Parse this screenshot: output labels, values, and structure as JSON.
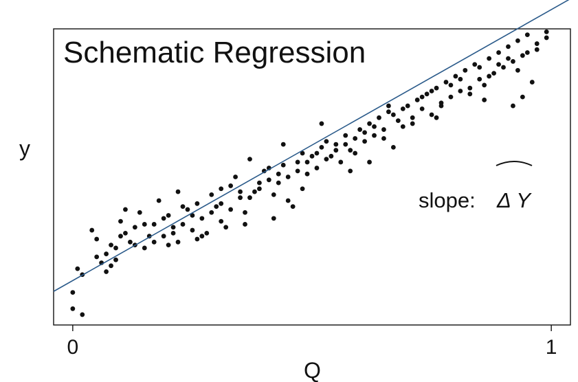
{
  "chart_data": {
    "type": "scatter",
    "title": "Schematic Regression",
    "xlabel": "Q",
    "ylabel": "y",
    "xlim": [
      -0.04,
      1.04
    ],
    "ylim": [
      0,
      1
    ],
    "x_ticks": [
      0,
      1
    ],
    "x_tick_labels": [
      "0",
      "1"
    ],
    "y_ticks": [],
    "grid": false,
    "annotation": "slope:",
    "annotation_symbol": "Δ Y",
    "regression_line": {
      "intercept": 0.15,
      "slope": 0.915
    },
    "colors": {
      "points": "#111111",
      "line": "#2a5a8a",
      "frame": "#111111"
    },
    "points": [
      [
        0.0,
        0.11
      ],
      [
        0.0,
        0.055
      ],
      [
        0.02,
        0.035
      ],
      [
        0.01,
        0.19
      ],
      [
        0.04,
        0.32
      ],
      [
        0.05,
        0.23
      ],
      [
        0.06,
        0.21
      ],
      [
        0.07,
        0.18
      ],
      [
        0.07,
        0.24
      ],
      [
        0.08,
        0.27
      ],
      [
        0.09,
        0.22
      ],
      [
        0.09,
        0.26
      ],
      [
        0.1,
        0.3
      ],
      [
        0.1,
        0.35
      ],
      [
        0.11,
        0.39
      ],
      [
        0.12,
        0.28
      ],
      [
        0.13,
        0.33
      ],
      [
        0.14,
        0.38
      ],
      [
        0.15,
        0.26
      ],
      [
        0.16,
        0.3
      ],
      [
        0.17,
        0.34
      ],
      [
        0.18,
        0.42
      ],
      [
        0.19,
        0.3
      ],
      [
        0.2,
        0.27
      ],
      [
        0.2,
        0.37
      ],
      [
        0.21,
        0.33
      ],
      [
        0.22,
        0.28
      ],
      [
        0.23,
        0.4
      ],
      [
        0.24,
        0.39
      ],
      [
        0.25,
        0.32
      ],
      [
        0.26,
        0.29
      ],
      [
        0.27,
        0.36
      ],
      [
        0.28,
        0.31
      ],
      [
        0.29,
        0.44
      ],
      [
        0.3,
        0.4
      ],
      [
        0.31,
        0.35
      ],
      [
        0.32,
        0.33
      ],
      [
        0.33,
        0.47
      ],
      [
        0.34,
        0.5
      ],
      [
        0.35,
        0.43
      ],
      [
        0.36,
        0.38
      ],
      [
        0.37,
        0.56
      ],
      [
        0.38,
        0.45
      ],
      [
        0.39,
        0.48
      ],
      [
        0.4,
        0.52
      ],
      [
        0.41,
        0.53
      ],
      [
        0.42,
        0.44
      ],
      [
        0.43,
        0.48
      ],
      [
        0.44,
        0.54
      ],
      [
        0.45,
        0.42
      ],
      [
        0.46,
        0.4
      ],
      [
        0.47,
        0.55
      ],
      [
        0.48,
        0.58
      ],
      [
        0.49,
        0.51
      ],
      [
        0.5,
        0.57
      ],
      [
        0.51,
        0.53
      ],
      [
        0.52,
        0.6
      ],
      [
        0.53,
        0.62
      ],
      [
        0.54,
        0.57
      ],
      [
        0.55,
        0.61
      ],
      [
        0.56,
        0.55
      ],
      [
        0.57,
        0.64
      ],
      [
        0.58,
        0.59
      ],
      [
        0.59,
        0.63
      ],
      [
        0.6,
        0.66
      ],
      [
        0.61,
        0.62
      ],
      [
        0.62,
        0.68
      ],
      [
        0.63,
        0.64
      ],
      [
        0.64,
        0.7
      ],
      [
        0.65,
        0.66
      ],
      [
        0.66,
        0.72
      ],
      [
        0.67,
        0.6
      ],
      [
        0.68,
        0.69
      ],
      [
        0.69,
        0.67
      ],
      [
        0.7,
        0.74
      ],
      [
        0.71,
        0.7
      ],
      [
        0.72,
        0.76
      ],
      [
        0.73,
        0.73
      ],
      [
        0.74,
        0.78
      ],
      [
        0.75,
        0.71
      ],
      [
        0.76,
        0.8
      ],
      [
        0.77,
        0.75
      ],
      [
        0.78,
        0.82
      ],
      [
        0.79,
        0.77
      ],
      [
        0.8,
        0.84
      ],
      [
        0.81,
        0.79
      ],
      [
        0.82,
        0.86
      ],
      [
        0.83,
        0.8
      ],
      [
        0.84,
        0.88
      ],
      [
        0.85,
        0.83
      ],
      [
        0.86,
        0.81
      ],
      [
        0.87,
        0.9
      ],
      [
        0.88,
        0.85
      ],
      [
        0.89,
        0.92
      ],
      [
        0.9,
        0.87
      ],
      [
        0.91,
        0.94
      ],
      [
        0.92,
        0.89
      ],
      [
        0.93,
        0.96
      ],
      [
        0.94,
        0.91
      ],
      [
        0.95,
        0.98
      ],
      [
        0.97,
        0.93
      ],
      [
        0.99,
        0.97
      ],
      [
        0.02,
        0.17
      ],
      [
        0.05,
        0.29
      ],
      [
        0.08,
        0.2
      ],
      [
        0.11,
        0.31
      ],
      [
        0.13,
        0.27
      ],
      [
        0.15,
        0.34
      ],
      [
        0.17,
        0.28
      ],
      [
        0.19,
        0.36
      ],
      [
        0.21,
        0.31
      ],
      [
        0.23,
        0.34
      ],
      [
        0.25,
        0.37
      ],
      [
        0.27,
        0.3
      ],
      [
        0.29,
        0.38
      ],
      [
        0.31,
        0.41
      ],
      [
        0.33,
        0.39
      ],
      [
        0.35,
        0.45
      ],
      [
        0.37,
        0.43
      ],
      [
        0.39,
        0.46
      ],
      [
        0.41,
        0.49
      ],
      [
        0.43,
        0.51
      ],
      [
        0.45,
        0.5
      ],
      [
        0.47,
        0.52
      ],
      [
        0.49,
        0.55
      ],
      [
        0.51,
        0.58
      ],
      [
        0.53,
        0.56
      ],
      [
        0.55,
        0.59
      ],
      [
        0.57,
        0.61
      ],
      [
        0.59,
        0.58
      ],
      [
        0.61,
        0.65
      ],
      [
        0.63,
        0.67
      ],
      [
        0.65,
        0.63
      ],
      [
        0.67,
        0.71
      ],
      [
        0.69,
        0.73
      ],
      [
        0.71,
        0.68
      ],
      [
        0.73,
        0.77
      ],
      [
        0.75,
        0.79
      ],
      [
        0.77,
        0.74
      ],
      [
        0.79,
        0.81
      ],
      [
        0.81,
        0.83
      ],
      [
        0.83,
        0.78
      ],
      [
        0.85,
        0.87
      ],
      [
        0.87,
        0.84
      ],
      [
        0.89,
        0.88
      ],
      [
        0.91,
        0.9
      ],
      [
        0.93,
        0.86
      ],
      [
        0.95,
        0.92
      ],
      [
        0.97,
        0.95
      ],
      [
        0.99,
        0.99
      ],
      [
        0.62,
        0.55
      ],
      [
        0.58,
        0.52
      ],
      [
        0.48,
        0.46
      ],
      [
        0.42,
        0.36
      ],
      [
        0.36,
        0.34
      ],
      [
        0.26,
        0.41
      ],
      [
        0.22,
        0.45
      ],
      [
        0.31,
        0.46
      ],
      [
        0.44,
        0.61
      ],
      [
        0.52,
        0.68
      ],
      [
        0.66,
        0.74
      ],
      [
        0.76,
        0.7
      ],
      [
        0.86,
        0.76
      ],
      [
        0.92,
        0.74
      ],
      [
        0.94,
        0.77
      ],
      [
        0.96,
        0.82
      ]
    ]
  }
}
